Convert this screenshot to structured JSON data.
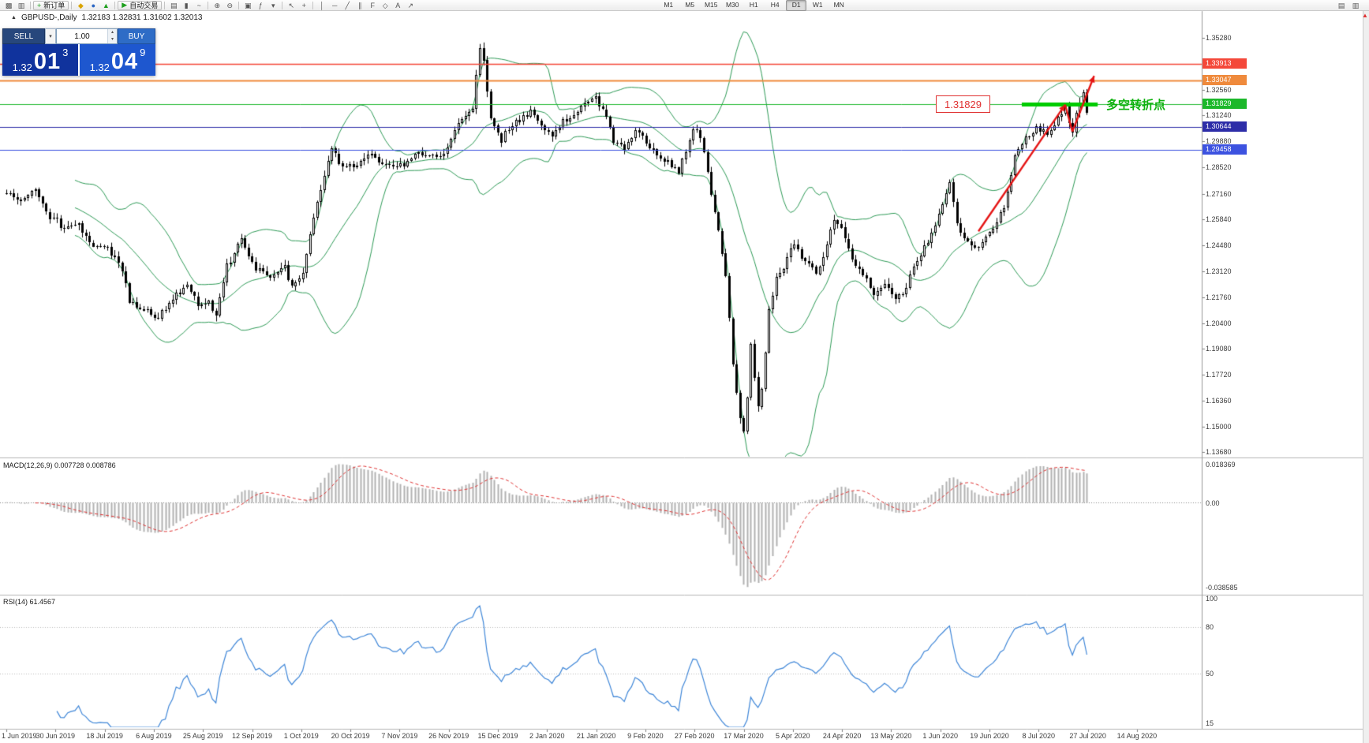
{
  "toolbar": {
    "buttons": {
      "new_order": "新订单",
      "auto_trading": "自动交易"
    },
    "timeframes": [
      "M1",
      "M5",
      "M15",
      "M30",
      "H1",
      "H4",
      "D1",
      "W1",
      "MN"
    ],
    "active_timeframe": "D1",
    "icons": {
      "new_chart": "▩",
      "profiles": "▥",
      "order_ticket": "+",
      "market_watch": "◆",
      "data_window": "●",
      "navigator": "▲",
      "autoplay": "▶",
      "chart_bars": "▤",
      "chart_candles": "▮",
      "chart_line": "~",
      "zoom_in": "⊕",
      "zoom_out": "⊖",
      "tile_windows": "▣",
      "indicators": "ƒ",
      "dropdown": "▾",
      "cursor": "↖",
      "crosshair": "+",
      "vertical_line": "│",
      "horizontal_line": "─",
      "trendline": "╱",
      "channel": "∥",
      "fibonacci": "F",
      "shapes": "◇",
      "text_tool": "A",
      "arrow_tool": "↗",
      "window_icon_a": "▤",
      "window_icon_b": "▥",
      "spinner_up": "▴",
      "spinner_down": "▾",
      "scroll_up": "▲",
      "title_marker": "▲"
    }
  },
  "chart_header": {
    "title": "GBPUSD-,Daily",
    "ohlc": "1.32183 1.32831 1.31602 1.32013"
  },
  "trade_panel": {
    "sell_label": "SELL",
    "buy_label": "BUY",
    "volume": "1.00",
    "sell_price": {
      "prefix": "1.32",
      "big": "01",
      "pip": "3"
    },
    "buy_price": {
      "prefix": "1.32",
      "big": "04",
      "pip": "9"
    },
    "colors": {
      "sell_button": "#27477c",
      "buy_button": "#2e6cc6",
      "sell_panel": "#10339d",
      "buy_panel": "#1e57c f"
    }
  },
  "annotations": {
    "price_flag_text": "1.31829",
    "pivot_text": "多空转折点",
    "pivot_color": "#0db10d",
    "arrow_color": "#e51414"
  },
  "price_axis": {
    "ticks": [
      "1.35280",
      "1.32560",
      "1.31240",
      "1.29880",
      "1.28520",
      "1.27160",
      "1.25840",
      "1.24480",
      "1.23120",
      "1.21760",
      "1.20400",
      "1.19080",
      "1.17720",
      "1.16360",
      "1.15000",
      "1.13680"
    ]
  },
  "chart_data": [
    {
      "type": "candlestick",
      "title": "GBPUSD-,Daily",
      "ohlc_display": {
        "open": "1.32183",
        "high": "1.32831",
        "low": "1.31602",
        "close": "1.32013"
      },
      "bars_total": 300,
      "ylim": [
        1.1345,
        1.3668
      ],
      "x_tick_labels": [
        "1 Jun 2019",
        "30 Jun 2019",
        "18 Jul 2019",
        "6 Aug 2019",
        "25 Aug 2019",
        "12 Sep 2019",
        "1 Oct 2019",
        "20 Oct 2019",
        "7 Nov 2019",
        "26 Nov 2019",
        "15 Dec 2019",
        "2 Jan 2020",
        "21 Jan 2020",
        "9 Feb 2020",
        "27 Feb 2020",
        "17 Mar 2020",
        "5 Apr 2020",
        "24 Apr 2020",
        "13 May 2020",
        "1 Jun 2020",
        "19 Jun 2020",
        "8 Jul 2020",
        "27 Jul 2020",
        "14 Aug 2020"
      ],
      "price_path_anchors": {
        "indices": [
          0,
          4,
          8,
          12,
          16,
          20,
          24,
          28,
          32,
          34,
          38,
          42,
          46,
          50,
          53,
          56,
          58,
          61,
          65,
          69,
          73,
          77,
          79,
          82,
          86,
          90,
          93,
          97,
          100,
          104,
          108,
          112,
          116,
          120,
          123,
          126,
          129,
          131,
          132,
          134,
          137,
          140,
          143,
          145,
          148,
          151,
          154,
          157,
          160,
          163,
          166,
          168,
          171,
          174,
          177,
          180,
          183,
          186,
          189,
          191,
          193,
          195,
          197,
          199,
          201,
          203,
          204,
          205,
          206,
          207,
          208,
          209,
          211,
          213,
          215,
          218,
          221,
          224,
          227,
          229,
          231,
          234,
          237,
          240,
          243,
          246,
          249,
          251,
          254,
          257,
          259,
          261,
          263,
          266,
          268,
          271,
          273,
          276,
          279,
          282,
          285,
          288,
          291,
          293,
          294,
          295,
          296,
          297,
          298,
          299,
          300
        ],
        "closes": [
          1.2735,
          1.269,
          1.274,
          1.26,
          1.254,
          1.256,
          1.243,
          1.244,
          1.232,
          1.216,
          1.211,
          1.207,
          1.217,
          1.224,
          1.213,
          1.216,
          1.207,
          1.234,
          1.247,
          1.233,
          1.229,
          1.233,
          1.222,
          1.23,
          1.268,
          1.294,
          1.285,
          1.287,
          1.293,
          1.288,
          1.285,
          1.29,
          1.293,
          1.291,
          1.3,
          1.312,
          1.316,
          1.348,
          1.34,
          1.311,
          1.3,
          1.308,
          1.311,
          1.315,
          1.307,
          1.301,
          1.309,
          1.312,
          1.318,
          1.321,
          1.311,
          1.3,
          1.296,
          1.305,
          1.299,
          1.292,
          1.288,
          1.282,
          1.301,
          1.306,
          1.292,
          1.271,
          1.251,
          1.228,
          1.182,
          1.154,
          1.148,
          1.164,
          1.192,
          1.175,
          1.162,
          1.17,
          1.21,
          1.228,
          1.233,
          1.246,
          1.236,
          1.231,
          1.244,
          1.259,
          1.254,
          1.236,
          1.23,
          1.219,
          1.224,
          1.217,
          1.223,
          1.234,
          1.244,
          1.255,
          1.266,
          1.276,
          1.256,
          1.247,
          1.243,
          1.249,
          1.255,
          1.264,
          1.292,
          1.301,
          1.306,
          1.303,
          1.312,
          1.317,
          1.309,
          1.305,
          1.312,
          1.32,
          1.325,
          1.315,
          1.3201
        ]
      },
      "overlays": {
        "bollinger": {
          "period": 20,
          "deviation": 2,
          "color": "#2e9b57"
        }
      },
      "hlines": [
        {
          "price": 1.33913,
          "label": "1.33913",
          "color": "#f4483a",
          "lw": 1.5
        },
        {
          "price": 1.33047,
          "label": "1.33047",
          "color": "#ef8a3c",
          "lw": 2
        },
        {
          "price": 1.31829,
          "label": "1.31829",
          "color": "#1cb82b",
          "lw": 1
        },
        {
          "price": 1.30644,
          "label": "1.30644",
          "color": "#2d2da8",
          "lw": 1
        },
        {
          "price": 1.29458,
          "label": "1.29458",
          "color": "#3c52e0",
          "lw": 1
        }
      ],
      "pivot_segment": {
        "from_bar": 281,
        "to_bar": 302,
        "price": 1.31829,
        "color": "#00cc00",
        "width": 5
      },
      "trend_arrows": [
        {
          "bars": [
            269,
            293
          ],
          "prices": [
            1.252,
            1.318
          ],
          "head": true
        },
        {
          "bars": [
            293,
            295
          ],
          "prices": [
            1.318,
            1.304
          ],
          "head": false
        },
        {
          "bars": [
            295,
            301
          ],
          "prices": [
            1.304,
            1.333
          ],
          "head": true
        }
      ]
    },
    {
      "type": "bar",
      "name": "MACD",
      "params": "(12,26,9)",
      "label_text": "MACD(12,26,9) 0.007728 0.008786",
      "values": {
        "main": "0.007728",
        "signal": "0.008786"
      },
      "derived_from": "closes: EMA12-EMA26 histogram, SMA9 signal",
      "axis": {
        "max": 0.018369,
        "min": -0.038585,
        "max_label": "0.018369",
        "zero_label": "0.00",
        "min_label": "-0.038585"
      },
      "colors": {
        "histogram": "#b2b2b2",
        "signal": "#e03131"
      }
    },
    {
      "type": "line",
      "name": "RSI",
      "params": "(14)",
      "label_text": "RSI(14) 61.4567",
      "value": "61.4567",
      "axis": {
        "max": 100,
        "min": 15,
        "labels": [
          100,
          80,
          50,
          15
        ],
        "dotted_levels": [
          80,
          50
        ]
      },
      "color": "#3e86d8"
    }
  ]
}
